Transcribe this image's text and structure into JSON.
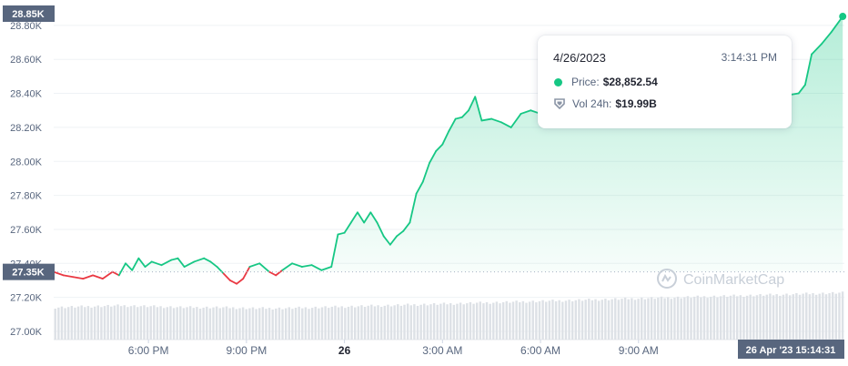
{
  "chart_data": {
    "type": "line",
    "title": "",
    "xlabel": "",
    "ylabel": "",
    "ylim": [
      27000,
      28850
    ],
    "y_ticks": [
      {
        "value": 27000,
        "label": "27.00K"
      },
      {
        "value": 27200,
        "label": "27.20K"
      },
      {
        "value": 27400,
        "label": "27.40K"
      },
      {
        "value": 27600,
        "label": "27.60K"
      },
      {
        "value": 27800,
        "label": "27.80K"
      },
      {
        "value": 28000,
        "label": "28.00K"
      },
      {
        "value": 28200,
        "label": "28.20K"
      },
      {
        "value": 28400,
        "label": "28.40K"
      },
      {
        "value": 28600,
        "label": "28.60K"
      },
      {
        "value": 28800,
        "label": "28.80K"
      }
    ],
    "x_range_hours": [
      15.1,
      39.3
    ],
    "x_ticks": [
      {
        "hour": 18,
        "label": "6:00 PM",
        "bold": false
      },
      {
        "hour": 21,
        "label": "9:00 PM",
        "bold": false
      },
      {
        "hour": 24,
        "label": "26",
        "bold": true
      },
      {
        "hour": 27,
        "label": "3:00 AM",
        "bold": false
      },
      {
        "hour": 30,
        "label": "6:00 AM",
        "bold": false
      },
      {
        "hour": 33,
        "label": "9:00 AM",
        "bold": false
      }
    ],
    "reference_price": 27350,
    "reference_label": "27.35K",
    "current_price_label": "28.85K",
    "cursor_label": "26 Apr '23   15:14:31",
    "colors": {
      "up": "#16c784",
      "down": "#ea3943",
      "fill": "#16c784",
      "volume": "#dde1e6",
      "tag": "#58667e"
    },
    "series": [
      {
        "values": [
          [
            15.1,
            27350
          ],
          [
            15.4,
            27330
          ],
          [
            15.7,
            27320
          ],
          [
            16.0,
            27310
          ],
          [
            16.3,
            27330
          ],
          [
            16.6,
            27310
          ],
          [
            16.9,
            27350
          ],
          [
            17.1,
            27330
          ],
          [
            17.3,
            27400
          ],
          [
            17.5,
            27360
          ],
          [
            17.7,
            27430
          ],
          [
            17.9,
            27380
          ],
          [
            18.1,
            27410
          ],
          [
            18.4,
            27390
          ],
          [
            18.7,
            27420
          ],
          [
            18.9,
            27430
          ],
          [
            19.1,
            27380
          ],
          [
            19.4,
            27410
          ],
          [
            19.7,
            27430
          ],
          [
            19.9,
            27410
          ],
          [
            20.1,
            27380
          ],
          [
            20.3,
            27340
          ],
          [
            20.5,
            27300
          ],
          [
            20.7,
            27280
          ],
          [
            20.9,
            27310
          ],
          [
            21.1,
            27380
          ],
          [
            21.4,
            27400
          ],
          [
            21.7,
            27350
          ],
          [
            21.9,
            27330
          ],
          [
            22.1,
            27360
          ],
          [
            22.4,
            27400
          ],
          [
            22.7,
            27380
          ],
          [
            23.0,
            27390
          ],
          [
            23.3,
            27360
          ],
          [
            23.6,
            27380
          ],
          [
            23.8,
            27570
          ],
          [
            24.0,
            27580
          ],
          [
            24.2,
            27640
          ],
          [
            24.4,
            27700
          ],
          [
            24.6,
            27640
          ],
          [
            24.8,
            27700
          ],
          [
            25.0,
            27640
          ],
          [
            25.2,
            27560
          ],
          [
            25.4,
            27510
          ],
          [
            25.6,
            27560
          ],
          [
            25.8,
            27590
          ],
          [
            26.0,
            27640
          ],
          [
            26.2,
            27810
          ],
          [
            26.4,
            27880
          ],
          [
            26.6,
            27990
          ],
          [
            26.8,
            28060
          ],
          [
            27.0,
            28100
          ],
          [
            27.2,
            28180
          ],
          [
            27.4,
            28250
          ],
          [
            27.6,
            28260
          ],
          [
            27.8,
            28300
          ],
          [
            28.0,
            28380
          ],
          [
            28.2,
            28240
          ],
          [
            28.5,
            28250
          ],
          [
            28.8,
            28230
          ],
          [
            29.1,
            28200
          ],
          [
            29.4,
            28280
          ],
          [
            29.7,
            28300
          ],
          [
            30.0,
            28280
          ],
          [
            30.4,
            28300
          ],
          [
            30.8,
            28320
          ],
          [
            31.2,
            28340
          ],
          [
            31.6,
            28320
          ],
          [
            32.0,
            28330
          ],
          [
            32.5,
            28360
          ],
          [
            33.0,
            28340
          ],
          [
            33.5,
            28350
          ],
          [
            34.0,
            28320
          ],
          [
            34.5,
            28340
          ],
          [
            35.0,
            28320
          ],
          [
            35.5,
            28330
          ],
          [
            36.0,
            28350
          ],
          [
            36.5,
            28370
          ],
          [
            37.0,
            28350
          ],
          [
            37.3,
            28350
          ],
          [
            37.6,
            28390
          ],
          [
            37.9,
            28400
          ],
          [
            38.1,
            28450
          ],
          [
            38.3,
            28630
          ],
          [
            38.6,
            28690
          ],
          [
            38.9,
            28760
          ],
          [
            39.25,
            28852.54
          ]
        ]
      }
    ],
    "volume": [
      0.34,
      0.35,
      0.36,
      0.35,
      0.34,
      0.34,
      0.33,
      0.33,
      0.34,
      0.35,
      0.36,
      0.37,
      0.38,
      0.39,
      0.4,
      0.41,
      0.42,
      0.43,
      0.44,
      0.45,
      0.46,
      0.47,
      0.48,
      0.49,
      0.5
    ]
  },
  "tooltip": {
    "date": "4/26/2023",
    "time": "3:14:31 PM",
    "price_label": "Price:",
    "price_value": "$28,852.54",
    "vol_label": "Vol 24h:",
    "vol_value": "$19.99B"
  },
  "watermark": "CoinMarketCap"
}
